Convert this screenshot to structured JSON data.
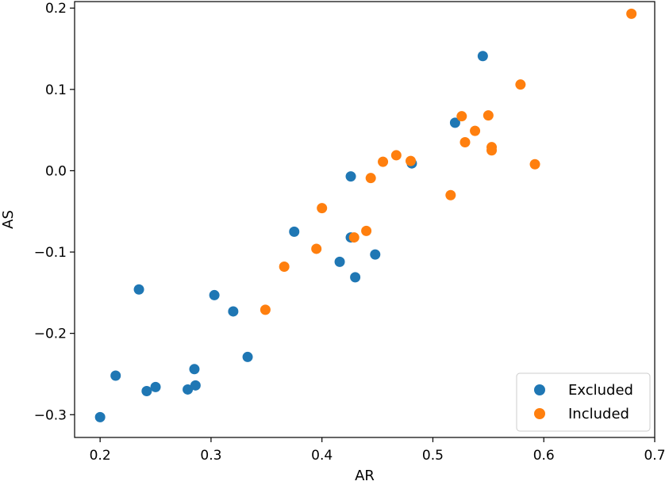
{
  "chart_data": {
    "type": "scatter",
    "title": "",
    "xlabel": "AR",
    "ylabel": "AS",
    "xlim": [
      0.177,
      0.7
    ],
    "ylim": [
      -0.328,
      0.208
    ],
    "xticks": [
      0.2,
      0.3,
      0.4,
      0.5,
      0.6,
      0.7
    ],
    "xtick_labels": [
      "0.2",
      "0.3",
      "0.4",
      "0.5",
      "0.6",
      "0.7"
    ],
    "yticks": [
      -0.3,
      -0.2,
      -0.1,
      0.0,
      0.1,
      0.2
    ],
    "ytick_labels": [
      "−0.3",
      "−0.2",
      "−0.1",
      "0.0",
      "0.1",
      "0.2"
    ],
    "grid": false,
    "legend_position": "bottom-right",
    "series": [
      {
        "name": "Excluded",
        "color": "#1f77b4",
        "x": [
          0.2,
          0.214,
          0.235,
          0.242,
          0.25,
          0.279,
          0.285,
          0.286,
          0.303,
          0.32,
          0.333,
          0.375,
          0.416,
          0.426,
          0.426,
          0.43,
          0.448,
          0.481,
          0.52,
          0.545
        ],
        "y": [
          -0.303,
          -0.252,
          -0.146,
          -0.271,
          -0.266,
          -0.269,
          -0.244,
          -0.264,
          -0.153,
          -0.173,
          -0.229,
          -0.075,
          -0.112,
          -0.007,
          -0.082,
          -0.131,
          -0.103,
          0.009,
          0.059,
          0.141
        ]
      },
      {
        "name": "Included",
        "color": "#ff7f0e",
        "x": [
          0.349,
          0.366,
          0.395,
          0.4,
          0.429,
          0.44,
          0.444,
          0.455,
          0.467,
          0.48,
          0.516,
          0.526,
          0.529,
          0.538,
          0.55,
          0.553,
          0.553,
          0.579,
          0.592,
          0.679
        ],
        "y": [
          -0.171,
          -0.118,
          -0.096,
          -0.046,
          -0.082,
          -0.074,
          -0.009,
          0.011,
          0.019,
          0.012,
          -0.03,
          0.067,
          0.035,
          0.049,
          0.068,
          0.029,
          0.025,
          0.106,
          0.008,
          0.193
        ]
      }
    ]
  }
}
